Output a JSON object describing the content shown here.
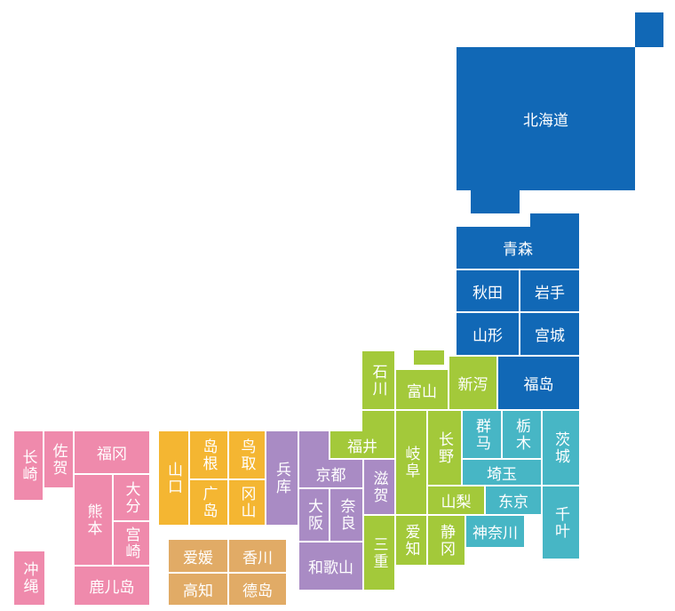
{
  "groups": [
    {
      "color": "#1168b6",
      "prefectures": [
        {
          "name": "北海道"
        }
      ]
    },
    {
      "color": "#1168b6",
      "prefectures": [
        {
          "name": "青森"
        },
        {
          "name": "秋田"
        },
        {
          "name": "岩手"
        },
        {
          "name": "山形"
        },
        {
          "name": "宫城"
        },
        {
          "name": "福岛"
        }
      ]
    },
    {
      "color": "#a3c93a",
      "prefectures": [
        {
          "name": "新泻"
        },
        {
          "name": "富山"
        },
        {
          "name": "石川"
        },
        {
          "name": "福井"
        },
        {
          "name": "岐阜"
        },
        {
          "name": "长野"
        },
        {
          "name": "山梨"
        },
        {
          "name": "爱知"
        },
        {
          "name": "静冈"
        },
        {
          "name": "三重"
        }
      ]
    },
    {
      "color": "#47b6c5",
      "prefectures": [
        {
          "name": "群马"
        },
        {
          "name": "栃木"
        },
        {
          "name": "茨城"
        },
        {
          "name": "埼玉"
        },
        {
          "name": "东京"
        },
        {
          "name": "千叶"
        },
        {
          "name": "神奈川"
        }
      ]
    },
    {
      "color": "#a98bc4",
      "prefectures": [
        {
          "name": "兵库"
        },
        {
          "name": "京都"
        },
        {
          "name": "滋贺"
        },
        {
          "name": "大阪"
        },
        {
          "name": "奈良"
        },
        {
          "name": "和歌山"
        }
      ]
    },
    {
      "color": "#f4b632",
      "prefectures": [
        {
          "name": "山口"
        },
        {
          "name": "岛根"
        },
        {
          "name": "鸟取"
        },
        {
          "name": "广岛"
        },
        {
          "name": "冈山"
        }
      ]
    },
    {
      "color": "#e1ab66",
      "prefectures": [
        {
          "name": "爱媛"
        },
        {
          "name": "香川"
        },
        {
          "name": "高知"
        },
        {
          "name": "德岛"
        }
      ]
    },
    {
      "color": "#ef8aac",
      "prefectures": [
        {
          "name": "长崎"
        },
        {
          "name": "佐贺"
        },
        {
          "name": "福冈"
        },
        {
          "name": "熊本"
        },
        {
          "name": "大分"
        },
        {
          "name": "宫崎"
        },
        {
          "name": "鹿儿岛"
        },
        {
          "name": "冲绳"
        }
      ]
    }
  ]
}
